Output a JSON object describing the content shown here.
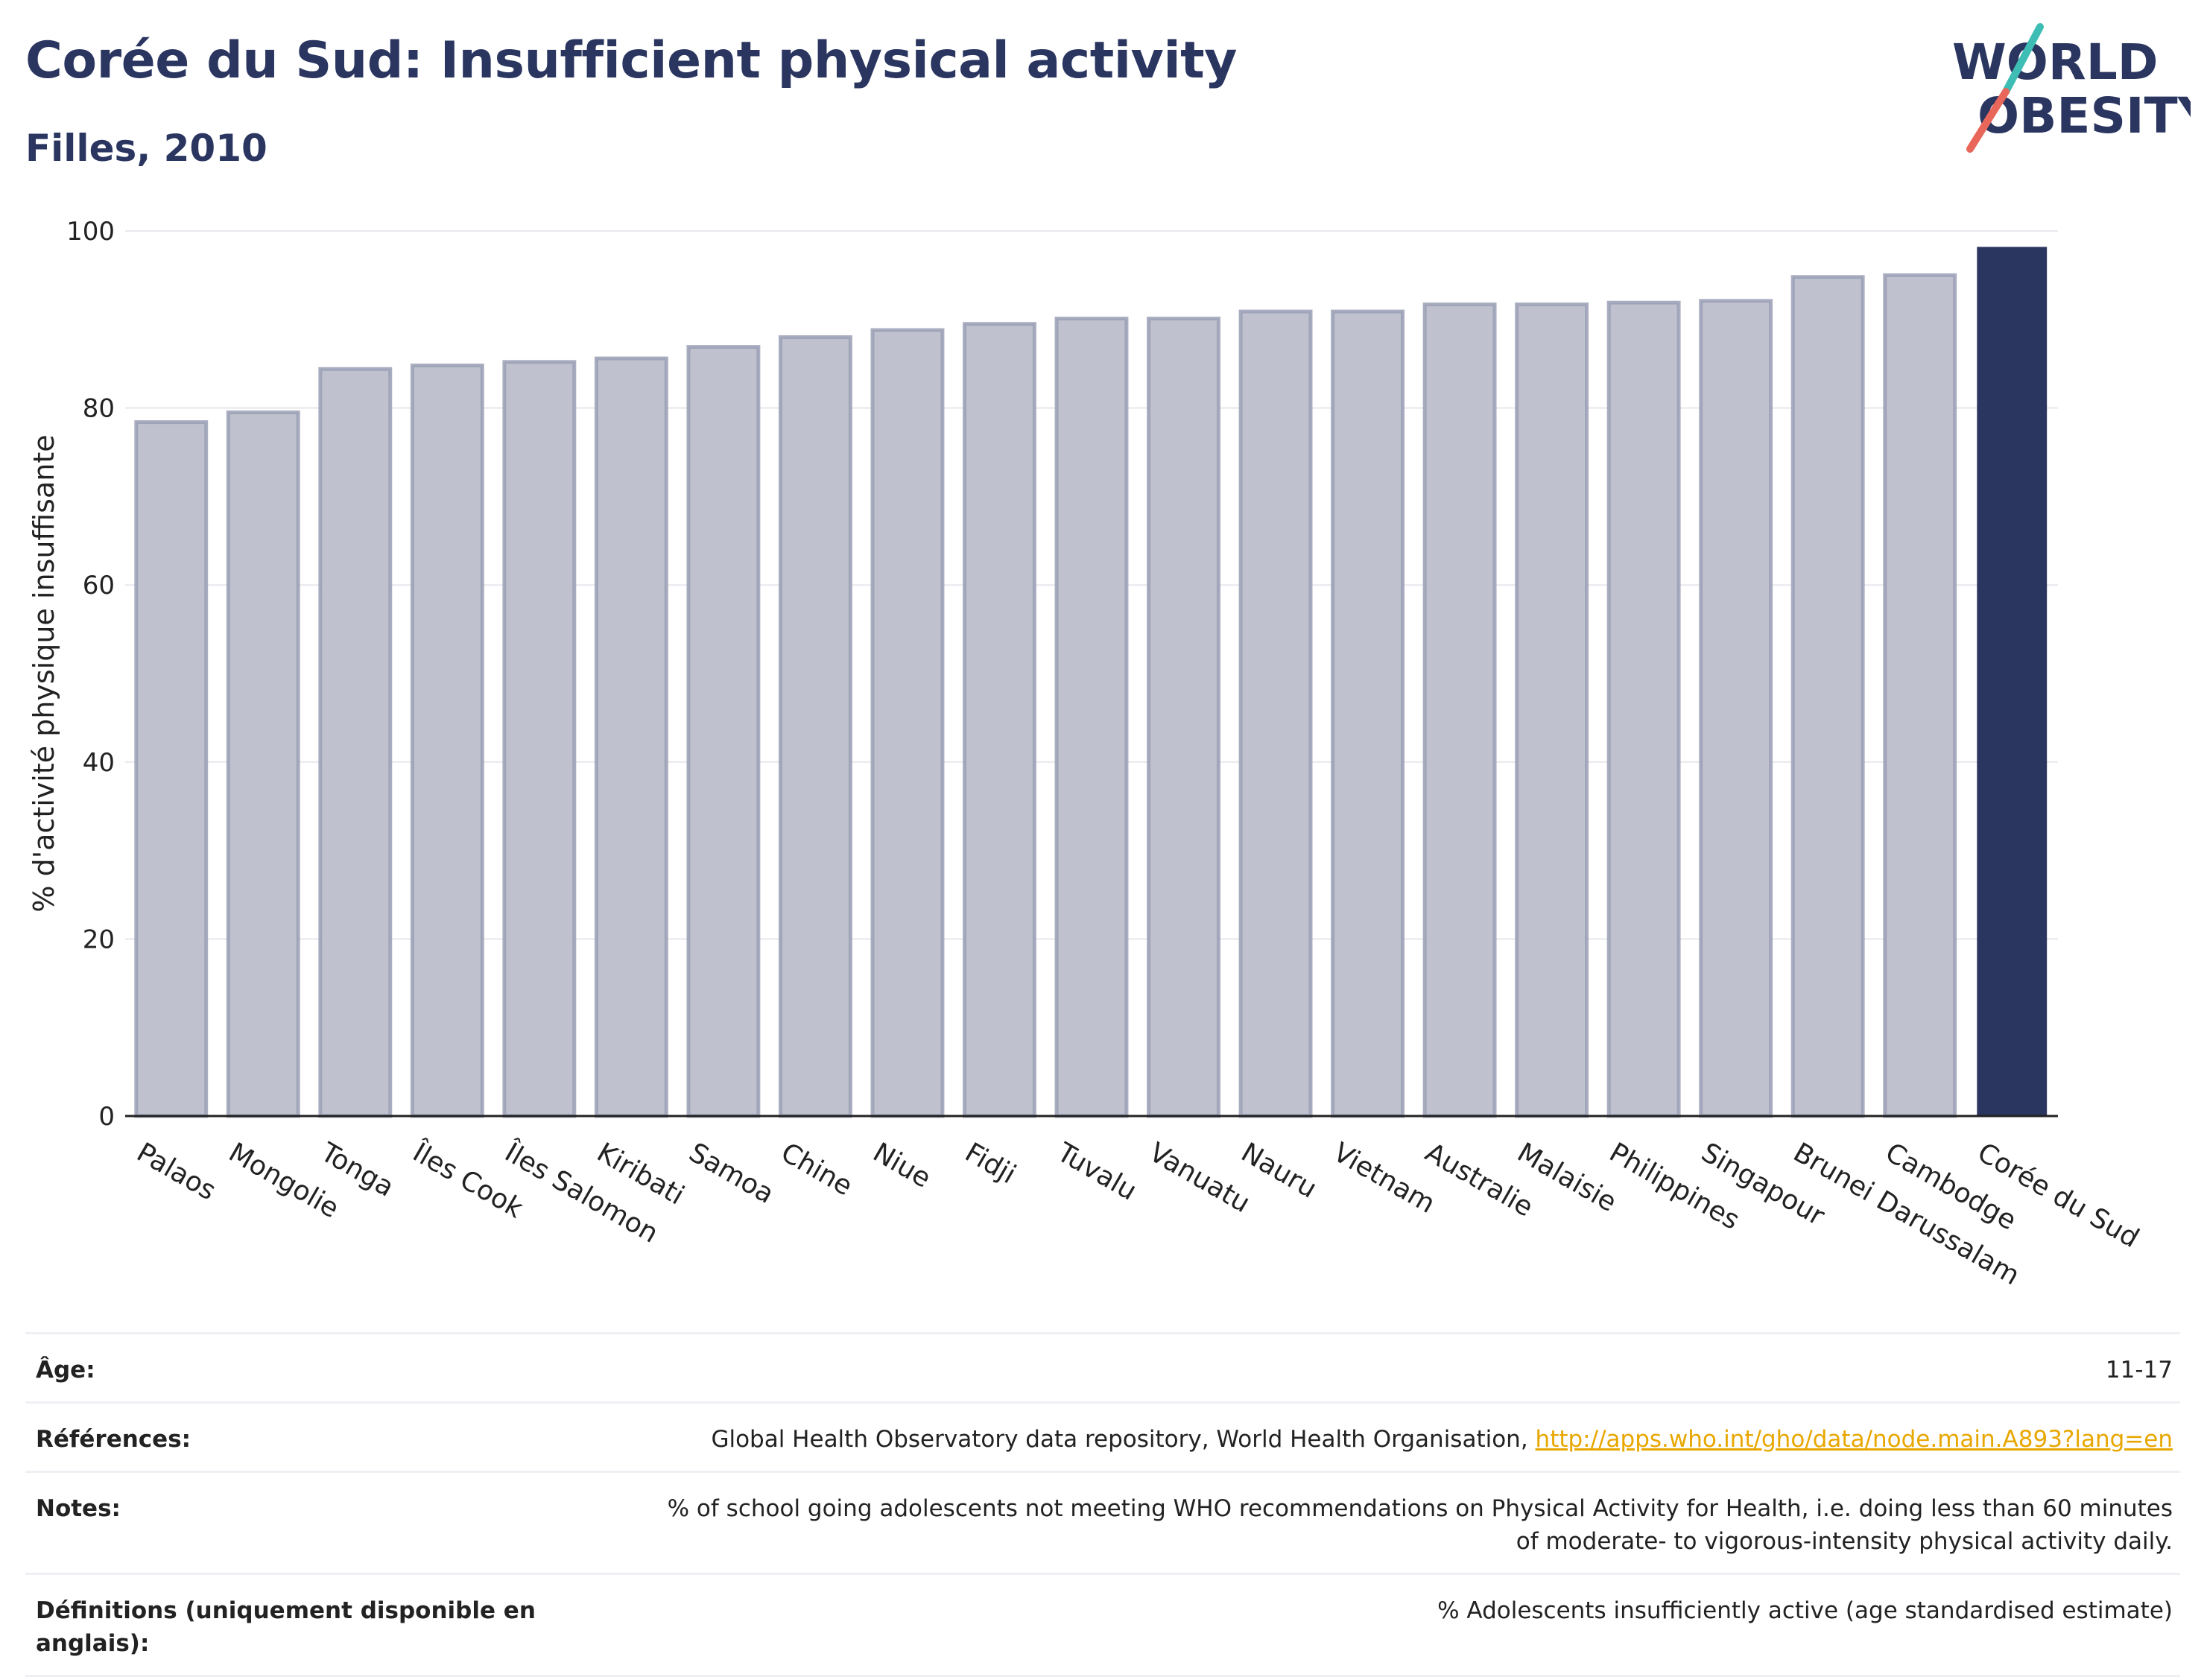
{
  "title": "Corée du Sud: Insufficient physical activity",
  "subtitle": "Filles, 2010",
  "logo": {
    "line1": "WORLD",
    "line2": "OBESITY"
  },
  "colors": {
    "highlight": "#2a3560",
    "bar": "#bfc2ce",
    "bar_border": "#9a9fb5",
    "grid": "#e8e8ee",
    "accent_teal": "#3dbdb4",
    "accent_red": "#e8675a"
  },
  "chart_data": {
    "type": "bar",
    "title": "Corée du Sud: Insufficient physical activity",
    "subtitle": "Filles, 2010",
    "ylabel": "% d'activité physique insuffisante",
    "xlabel": "",
    "ylim": [
      0,
      100
    ],
    "yticks": [
      0,
      20,
      40,
      60,
      80,
      100
    ],
    "grid": true,
    "highlight": "Corée du Sud",
    "categories": [
      "Palaos",
      "Mongolie",
      "Tonga",
      "Îles Cook",
      "Îles Salomon",
      "Kiribati",
      "Samoa",
      "Chine",
      "Niue",
      "Fidji",
      "Tuvalu",
      "Vanuatu",
      "Nauru",
      "Vietnam",
      "Australie",
      "Malaisie",
      "Philippines",
      "Singapour",
      "Brunei Darussalam",
      "Cambodge",
      "Corée du Sud"
    ],
    "values": [
      78.4,
      79.5,
      84.4,
      84.8,
      85.2,
      85.6,
      86.9,
      88.0,
      88.8,
      89.5,
      90.1,
      90.1,
      90.9,
      90.9,
      91.7,
      91.7,
      91.9,
      92.1,
      94.8,
      95.0,
      98.2
    ]
  },
  "info": [
    {
      "label": "Âge:",
      "value": "11-17"
    },
    {
      "label": "Références:",
      "value": "Global Health Observatory data repository, World Health Organisation, ",
      "link": "http://apps.who.int/gho/data/node.main.A893?lang=en"
    },
    {
      "label": "Notes:",
      "value": "% of school going adolescents not meeting WHO recommendations on Physical Activity for Health, i.e. doing less than 60 minutes of moderate- to vigorous-intensity physical activity daily."
    },
    {
      "label": "Définitions (uniquement disponible en anglais):",
      "value": "% Adolescents insufficiently active (age standardised estimate)"
    }
  ]
}
